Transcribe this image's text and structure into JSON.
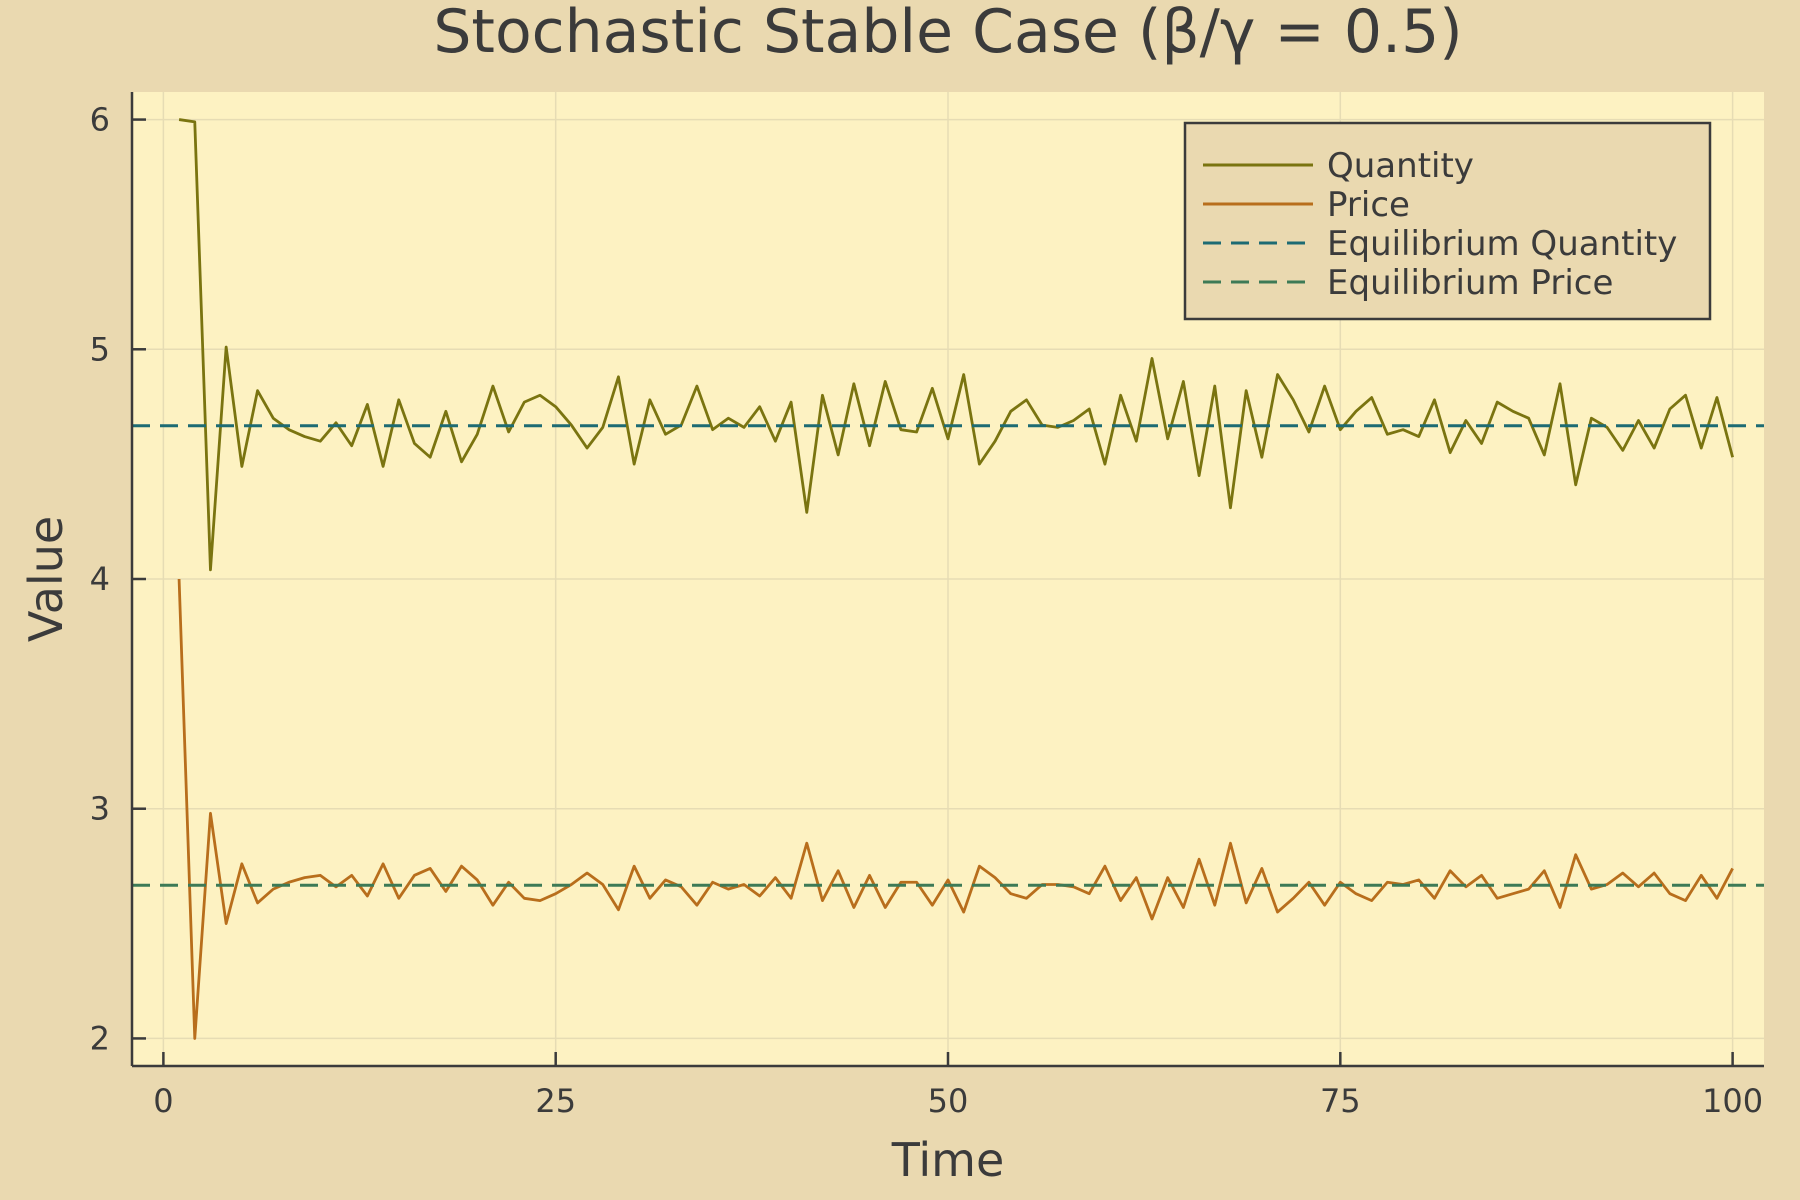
{
  "chart_data": {
    "type": "line",
    "title": "Stochastic Stable Case (β/γ = 0.5)",
    "xlabel": "Time",
    "ylabel": "Value",
    "xlim": [
      -2,
      102
    ],
    "ylim": [
      1.88,
      6.12
    ],
    "xticks": [
      0,
      25,
      50,
      75,
      100
    ],
    "yticks": [
      2,
      3,
      4,
      5,
      6
    ],
    "grid": true,
    "legend_position": "top-right",
    "colors": {
      "background": "#ead9b0",
      "plot_background": "#fdf2c2",
      "grid": "#e6dcb4",
      "axis": "#3b3b3b"
    },
    "series": [
      {
        "name": "Quantity",
        "style": "solid",
        "color": "#7a7410",
        "x": [
          1,
          2,
          3,
          4,
          5,
          6,
          7,
          8,
          9,
          10,
          11,
          12,
          13,
          14,
          15,
          16,
          17,
          18,
          19,
          20,
          21,
          22,
          23,
          24,
          25,
          26,
          27,
          28,
          29,
          30,
          31,
          32,
          33,
          34,
          35,
          36,
          37,
          38,
          39,
          40,
          41,
          42,
          43,
          44,
          45,
          46,
          47,
          48,
          49,
          50,
          51,
          52,
          53,
          54,
          55,
          56,
          57,
          58,
          59,
          60,
          61,
          62,
          63,
          64,
          65,
          66,
          67,
          68,
          69,
          70,
          71,
          72,
          73,
          74,
          75,
          76,
          77,
          78,
          79,
          80,
          81,
          82,
          83,
          84,
          85,
          86,
          87,
          88,
          89,
          90,
          91,
          92,
          93,
          94,
          95,
          96,
          97,
          98,
          99,
          100
        ],
        "values": [
          6.0,
          5.99,
          4.04,
          5.01,
          4.49,
          4.82,
          4.7,
          4.65,
          4.62,
          4.6,
          4.68,
          4.58,
          4.76,
          4.49,
          4.78,
          4.59,
          4.53,
          4.73,
          4.51,
          4.63,
          4.84,
          4.64,
          4.77,
          4.8,
          4.75,
          4.67,
          4.57,
          4.66,
          4.88,
          4.5,
          4.78,
          4.63,
          4.67,
          4.84,
          4.65,
          4.7,
          4.66,
          4.75,
          4.6,
          4.77,
          4.29,
          4.8,
          4.54,
          4.85,
          4.58,
          4.86,
          4.65,
          4.64,
          4.83,
          4.61,
          4.89,
          4.5,
          4.6,
          4.73,
          4.78,
          4.67,
          4.66,
          4.69,
          4.74,
          4.5,
          4.8,
          4.6,
          4.96,
          4.61,
          4.86,
          4.45,
          4.84,
          4.31,
          4.82,
          4.53,
          4.89,
          4.78,
          4.64,
          4.84,
          4.65,
          4.73,
          4.79,
          4.63,
          4.65,
          4.62,
          4.78,
          4.55,
          4.69,
          4.59,
          4.77,
          4.73,
          4.7,
          4.54,
          4.85,
          4.41,
          4.7,
          4.66,
          4.56,
          4.69,
          4.57,
          4.74,
          4.8,
          4.57,
          4.79,
          4.53
        ]
      },
      {
        "name": "Price",
        "style": "solid",
        "color": "#b86e1c",
        "x": [
          1,
          2,
          3,
          4,
          5,
          6,
          7,
          8,
          9,
          10,
          11,
          12,
          13,
          14,
          15,
          16,
          17,
          18,
          19,
          20,
          21,
          22,
          23,
          24,
          25,
          26,
          27,
          28,
          29,
          30,
          31,
          32,
          33,
          34,
          35,
          36,
          37,
          38,
          39,
          40,
          41,
          42,
          43,
          44,
          45,
          46,
          47,
          48,
          49,
          50,
          51,
          52,
          53,
          54,
          55,
          56,
          57,
          58,
          59,
          60,
          61,
          62,
          63,
          64,
          65,
          66,
          67,
          68,
          69,
          70,
          71,
          72,
          73,
          74,
          75,
          76,
          77,
          78,
          79,
          80,
          81,
          82,
          83,
          84,
          85,
          86,
          87,
          88,
          89,
          90,
          91,
          92,
          93,
          94,
          95,
          96,
          97,
          98,
          99,
          100
        ],
        "values": [
          4.0,
          2.0,
          2.98,
          2.5,
          2.76,
          2.59,
          2.65,
          2.68,
          2.7,
          2.71,
          2.66,
          2.71,
          2.62,
          2.76,
          2.61,
          2.71,
          2.74,
          2.64,
          2.75,
          2.69,
          2.58,
          2.68,
          2.61,
          2.6,
          2.63,
          2.67,
          2.72,
          2.67,
          2.56,
          2.75,
          2.61,
          2.69,
          2.66,
          2.58,
          2.68,
          2.65,
          2.67,
          2.62,
          2.7,
          2.61,
          2.85,
          2.6,
          2.73,
          2.57,
          2.71,
          2.57,
          2.68,
          2.68,
          2.58,
          2.69,
          2.55,
          2.75,
          2.7,
          2.63,
          2.61,
          2.67,
          2.67,
          2.66,
          2.63,
          2.75,
          2.6,
          2.7,
          2.52,
          2.7,
          2.57,
          2.78,
          2.58,
          2.85,
          2.59,
          2.74,
          2.55,
          2.61,
          2.68,
          2.58,
          2.68,
          2.63,
          2.6,
          2.68,
          2.67,
          2.69,
          2.61,
          2.73,
          2.66,
          2.71,
          2.61,
          2.63,
          2.65,
          2.73,
          2.57,
          2.8,
          2.65,
          2.67,
          2.72,
          2.66,
          2.72,
          2.63,
          2.6,
          2.71,
          2.61,
          2.74
        ]
      },
      {
        "name": "Equilibrium Quantity",
        "style": "dashed",
        "color": "#1d6b73",
        "hline": 4.667
      },
      {
        "name": "Equilibrium Price",
        "style": "dashed",
        "color": "#3d7a56",
        "hline": 2.667
      }
    ]
  }
}
